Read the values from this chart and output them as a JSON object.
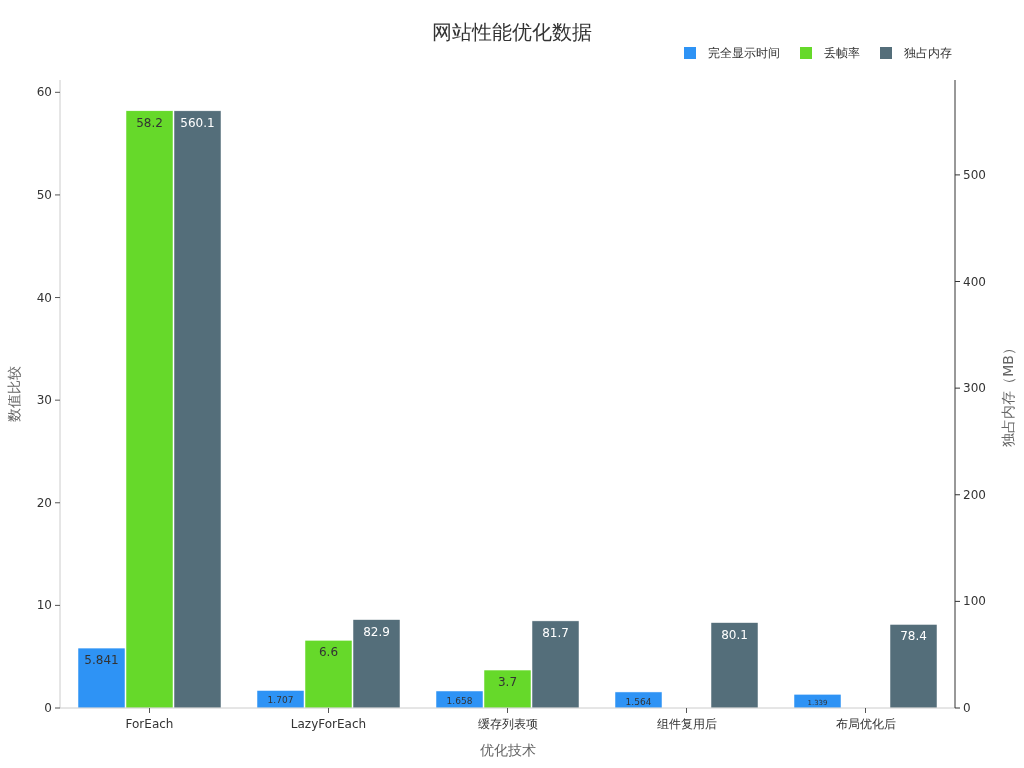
{
  "chart_data": {
    "type": "bar",
    "title": "网站性能优化数据",
    "xlabel": "优化技术",
    "ylabel": "数值比较",
    "y2label": "独占内存（MB）",
    "categories": [
      "ForEach",
      "LazyForEach",
      "缓存列表项",
      "组件复用后",
      "布局优化后"
    ],
    "series": [
      {
        "name": "完全显示时间",
        "color": "#2e93f5",
        "values": [
          5.841,
          1.707,
          1.658,
          1.564,
          1.339
        ]
      },
      {
        "name": "丢帧率",
        "color": "#66d92a",
        "values": [
          58.2,
          6.6,
          3.7,
          null,
          null
        ]
      },
      {
        "name": "独占内存",
        "color": "#546e7a",
        "values": [
          560.1,
          82.9,
          81.7,
          80.1,
          78.4
        ],
        "axis": "y2"
      }
    ],
    "ylim": [
      0,
      61.2
    ],
    "yticks": [
      0,
      10,
      20,
      30,
      40,
      50,
      60
    ],
    "y2lim": [
      0,
      589
    ],
    "y2ticks": [
      0,
      100,
      200,
      300,
      400,
      500
    ],
    "data_labels": true,
    "legend": "top right"
  }
}
